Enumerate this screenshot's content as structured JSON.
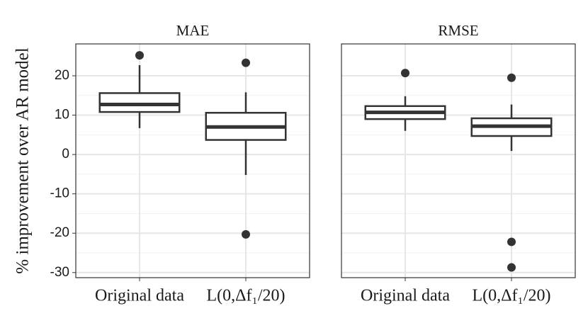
{
  "chart_data": {
    "type": "boxplot",
    "y_label": "% improvement over AR model",
    "categories": [
      "Original data",
      "L(0,Δf₁/20)"
    ],
    "ylim": [
      -31.3,
      28.1
    ],
    "yticks": [
      -30,
      -20,
      -10,
      0,
      10,
      20
    ],
    "grid": true,
    "color": "#333333",
    "panels": [
      {
        "title": "MAE",
        "boxes": [
          {
            "whisker_low": 6.7,
            "q1": 10.8,
            "median": 12.7,
            "q3": 15.6,
            "whisker_high": 22.7,
            "outliers": [
              25.2
            ]
          },
          {
            "whisker_low": -5.2,
            "q1": 3.7,
            "median": 7.0,
            "q3": 10.6,
            "whisker_high": 15.8,
            "outliers": [
              23.3,
              -20.3
            ]
          }
        ]
      },
      {
        "title": "RMSE",
        "boxes": [
          {
            "whisker_low": 6.0,
            "q1": 9.0,
            "median": 10.7,
            "q3": 12.3,
            "whisker_high": 14.8,
            "outliers": [
              20.7
            ]
          },
          {
            "whisker_low": 0.9,
            "q1": 4.7,
            "median": 7.2,
            "q3": 9.2,
            "whisker_high": 12.7,
            "outliers": [
              19.5,
              -22.2,
              -28.7
            ]
          }
        ]
      }
    ]
  }
}
